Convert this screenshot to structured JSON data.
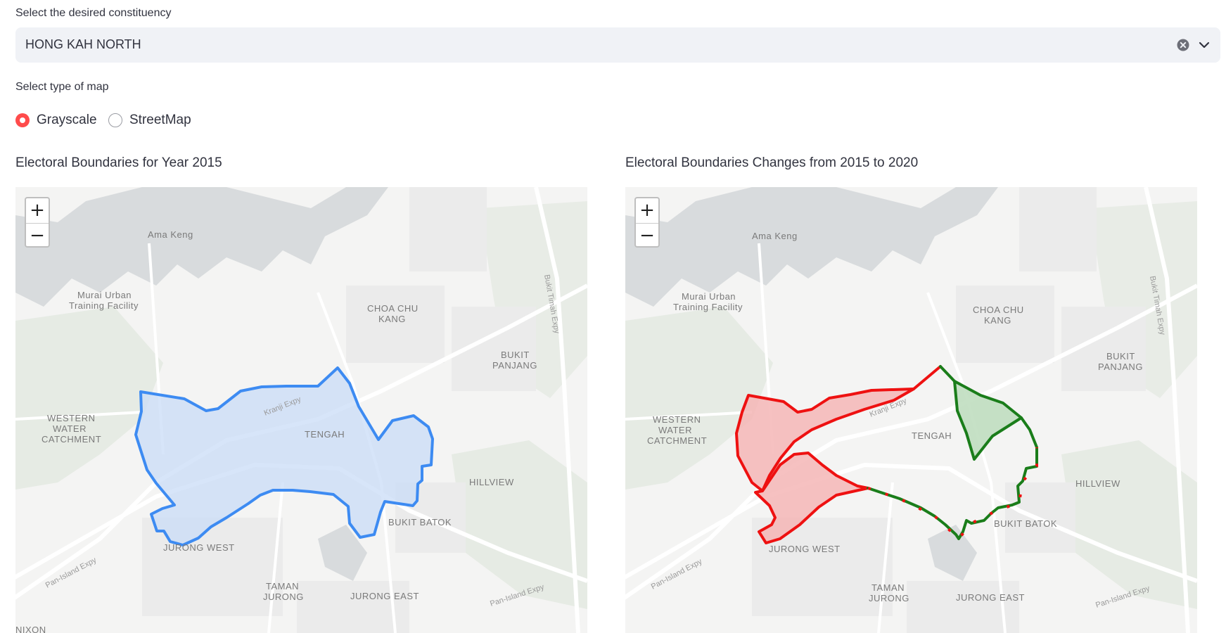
{
  "constituency": {
    "label": "Select the desired constituency",
    "value": "HONG KAH NORTH"
  },
  "map_type": {
    "label": "Select type of map",
    "options": [
      "Grayscale",
      "StreetMap"
    ],
    "selected": "Grayscale"
  },
  "left_map": {
    "title": "Electoral Boundaries for Year 2015",
    "boundary_color": "#3d8bf2",
    "fill_color": "#c9dcf7"
  },
  "right_map": {
    "title": "Electoral Boundaries Changes from 2015 to 2020",
    "removed_color": "#ee1111",
    "added_color": "#1a7d1a"
  },
  "zoom": {
    "in": "+",
    "out": "−"
  },
  "place_labels": {
    "ama_keng": "Ama Keng",
    "murai_1": "Murai Urban",
    "murai_2": "Training Facility",
    "choa_1": "CHOA CHU",
    "choa_2": "KANG",
    "bukit_panjang_1": "BUKIT",
    "bukit_panjang_2": "PANJANG",
    "western_1": "WESTERN",
    "western_2": "WATER",
    "western_3": "CATCHMENT",
    "tengah": "TENGAH",
    "hillview": "HILLVIEW",
    "bukit_batok": "BUKIT BATOK",
    "jurong_west": "JURONG WEST",
    "taman_1": "TAMAN",
    "taman_2": "JURONG",
    "jurong_east": "JURONG EAST",
    "pie_1": "Pan-Island Expy",
    "pie_2": "Pan-Island Expy",
    "bke": "Bukit Timah Expy",
    "kje": "Kranji Expy",
    "nixon": "NIXON"
  },
  "icons": {
    "clear": "clear-circle-icon",
    "dropdown": "chevron-down-icon"
  },
  "accent_color": "#ff4b4b"
}
